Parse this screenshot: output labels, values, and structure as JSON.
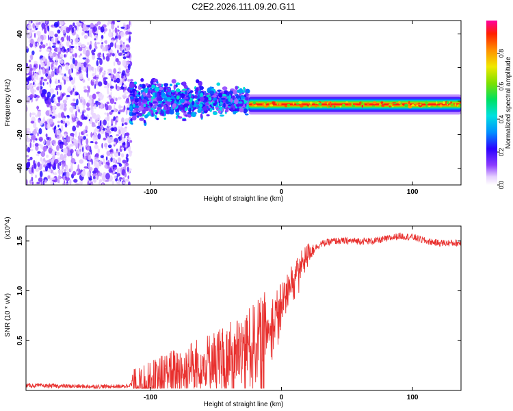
{
  "figure": {
    "title": "C2E2.2026.111.09.20.G11"
  },
  "chart_data": [
    {
      "type": "heatmap",
      "xlabel": "Height of straight line (km)",
      "ylabel": "Frequency (Hz)",
      "xlim": [
        -195,
        137
      ],
      "ylim": [
        -50,
        48
      ],
      "xticks": [
        -100,
        0,
        100
      ],
      "yticks": [
        -40,
        -20,
        0,
        20,
        40
      ],
      "colorbar": {
        "label": "Normalized spectral amplitude",
        "range": [
          0,
          1
        ],
        "ticks": [
          0.0,
          0.2,
          0.4,
          0.6,
          0.8
        ]
      },
      "regions": [
        {
          "x_range": [
            -195,
            -115
          ],
          "description": "broadband scatter",
          "amplitude": 0.1
        },
        {
          "x_range": [
            -115,
            -25
          ],
          "freq_center": 0,
          "amplitude": 0.3
        },
        {
          "x_range": [
            -25,
            137
          ],
          "freq_center": -2,
          "amplitude": 0.95
        }
      ]
    },
    {
      "type": "line",
      "xlabel": "Height of straight line (km)",
      "ylabel": "SNR (10 * v/v)",
      "multiplier": "(x10^4)",
      "xlim": [
        -195,
        137
      ],
      "ylim": [
        0,
        1.65
      ],
      "xticks": [
        -100,
        0,
        100
      ],
      "yticks": [
        0.5,
        1.0,
        1.5
      ],
      "series": [
        {
          "name": "SNR",
          "color": "#e8302e",
          "x": [
            -195,
            -150,
            -120,
            -110,
            -100,
            -90,
            -80,
            -70,
            -60,
            -50,
            -40,
            -30,
            -20,
            -15,
            -10,
            -5,
            0,
            5,
            10,
            15,
            20,
            30,
            40,
            50,
            60,
            70,
            80,
            90,
            100,
            110,
            120,
            130,
            137
          ],
          "values": [
            0.05,
            0.04,
            0.04,
            0.08,
            0.12,
            0.18,
            0.22,
            0.26,
            0.3,
            0.34,
            0.38,
            0.44,
            0.55,
            0.6,
            0.7,
            0.8,
            0.9,
            1.05,
            1.18,
            1.28,
            1.38,
            1.47,
            1.5,
            1.5,
            1.5,
            1.5,
            1.52,
            1.55,
            1.54,
            1.5,
            1.48,
            1.48,
            1.48
          ]
        }
      ]
    }
  ]
}
